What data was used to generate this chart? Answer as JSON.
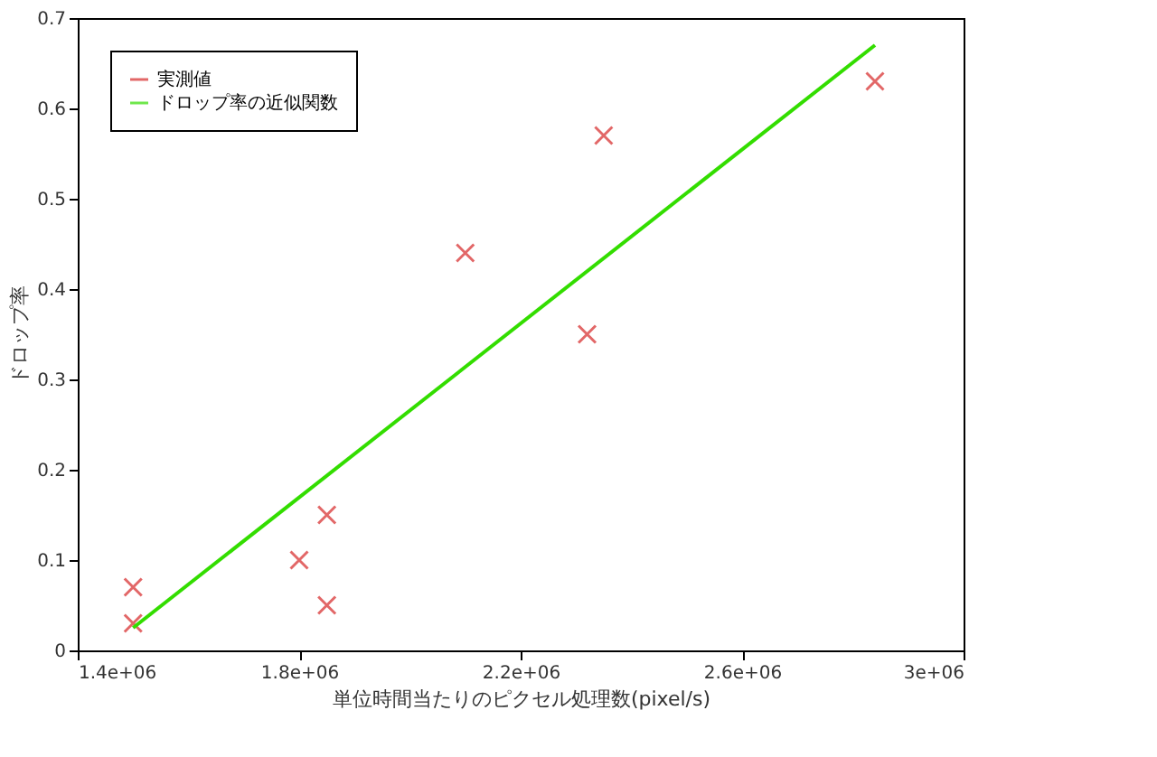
{
  "chart_data": {
    "type": "scatter",
    "xlabel": "単位時間当たりのピクセル処理数(pixel/s)",
    "ylabel": "ドロップ率",
    "series": [
      {
        "name": "実測値",
        "color": "#d62728",
        "marker": "cross",
        "x": [
          1500000,
          1500000,
          1800000,
          1850000,
          1850000,
          2100000,
          2320000,
          2350000,
          2840000
        ],
        "values": [
          0.03,
          0.07,
          0.1,
          0.15,
          0.05,
          0.44,
          0.35,
          0.57,
          0.63
        ]
      },
      {
        "name": "ドロップ率の近似関数",
        "color": "#33dd00",
        "type": "line",
        "marker": "none",
        "x": [
          1500000,
          2840000
        ],
        "values": [
          0.025,
          0.67
        ]
      }
    ],
    "xlim": [
      1400000,
      3000000
    ],
    "xticks": [
      {
        "value": 1400000,
        "label": "1.4e+06"
      },
      {
        "value": 1800000,
        "label": "1.8e+06"
      },
      {
        "value": 2200000,
        "label": "2.2e+06"
      },
      {
        "value": 2600000,
        "label": "2.6e+06"
      },
      {
        "value": 3000000,
        "label": "3e+06"
      }
    ],
    "ylim": [
      0,
      0.7
    ],
    "yticks": [
      0,
      0.1,
      0.2,
      0.3,
      0.4,
      0.5,
      0.6,
      0.7
    ],
    "grid": false,
    "legend": "top left"
  }
}
